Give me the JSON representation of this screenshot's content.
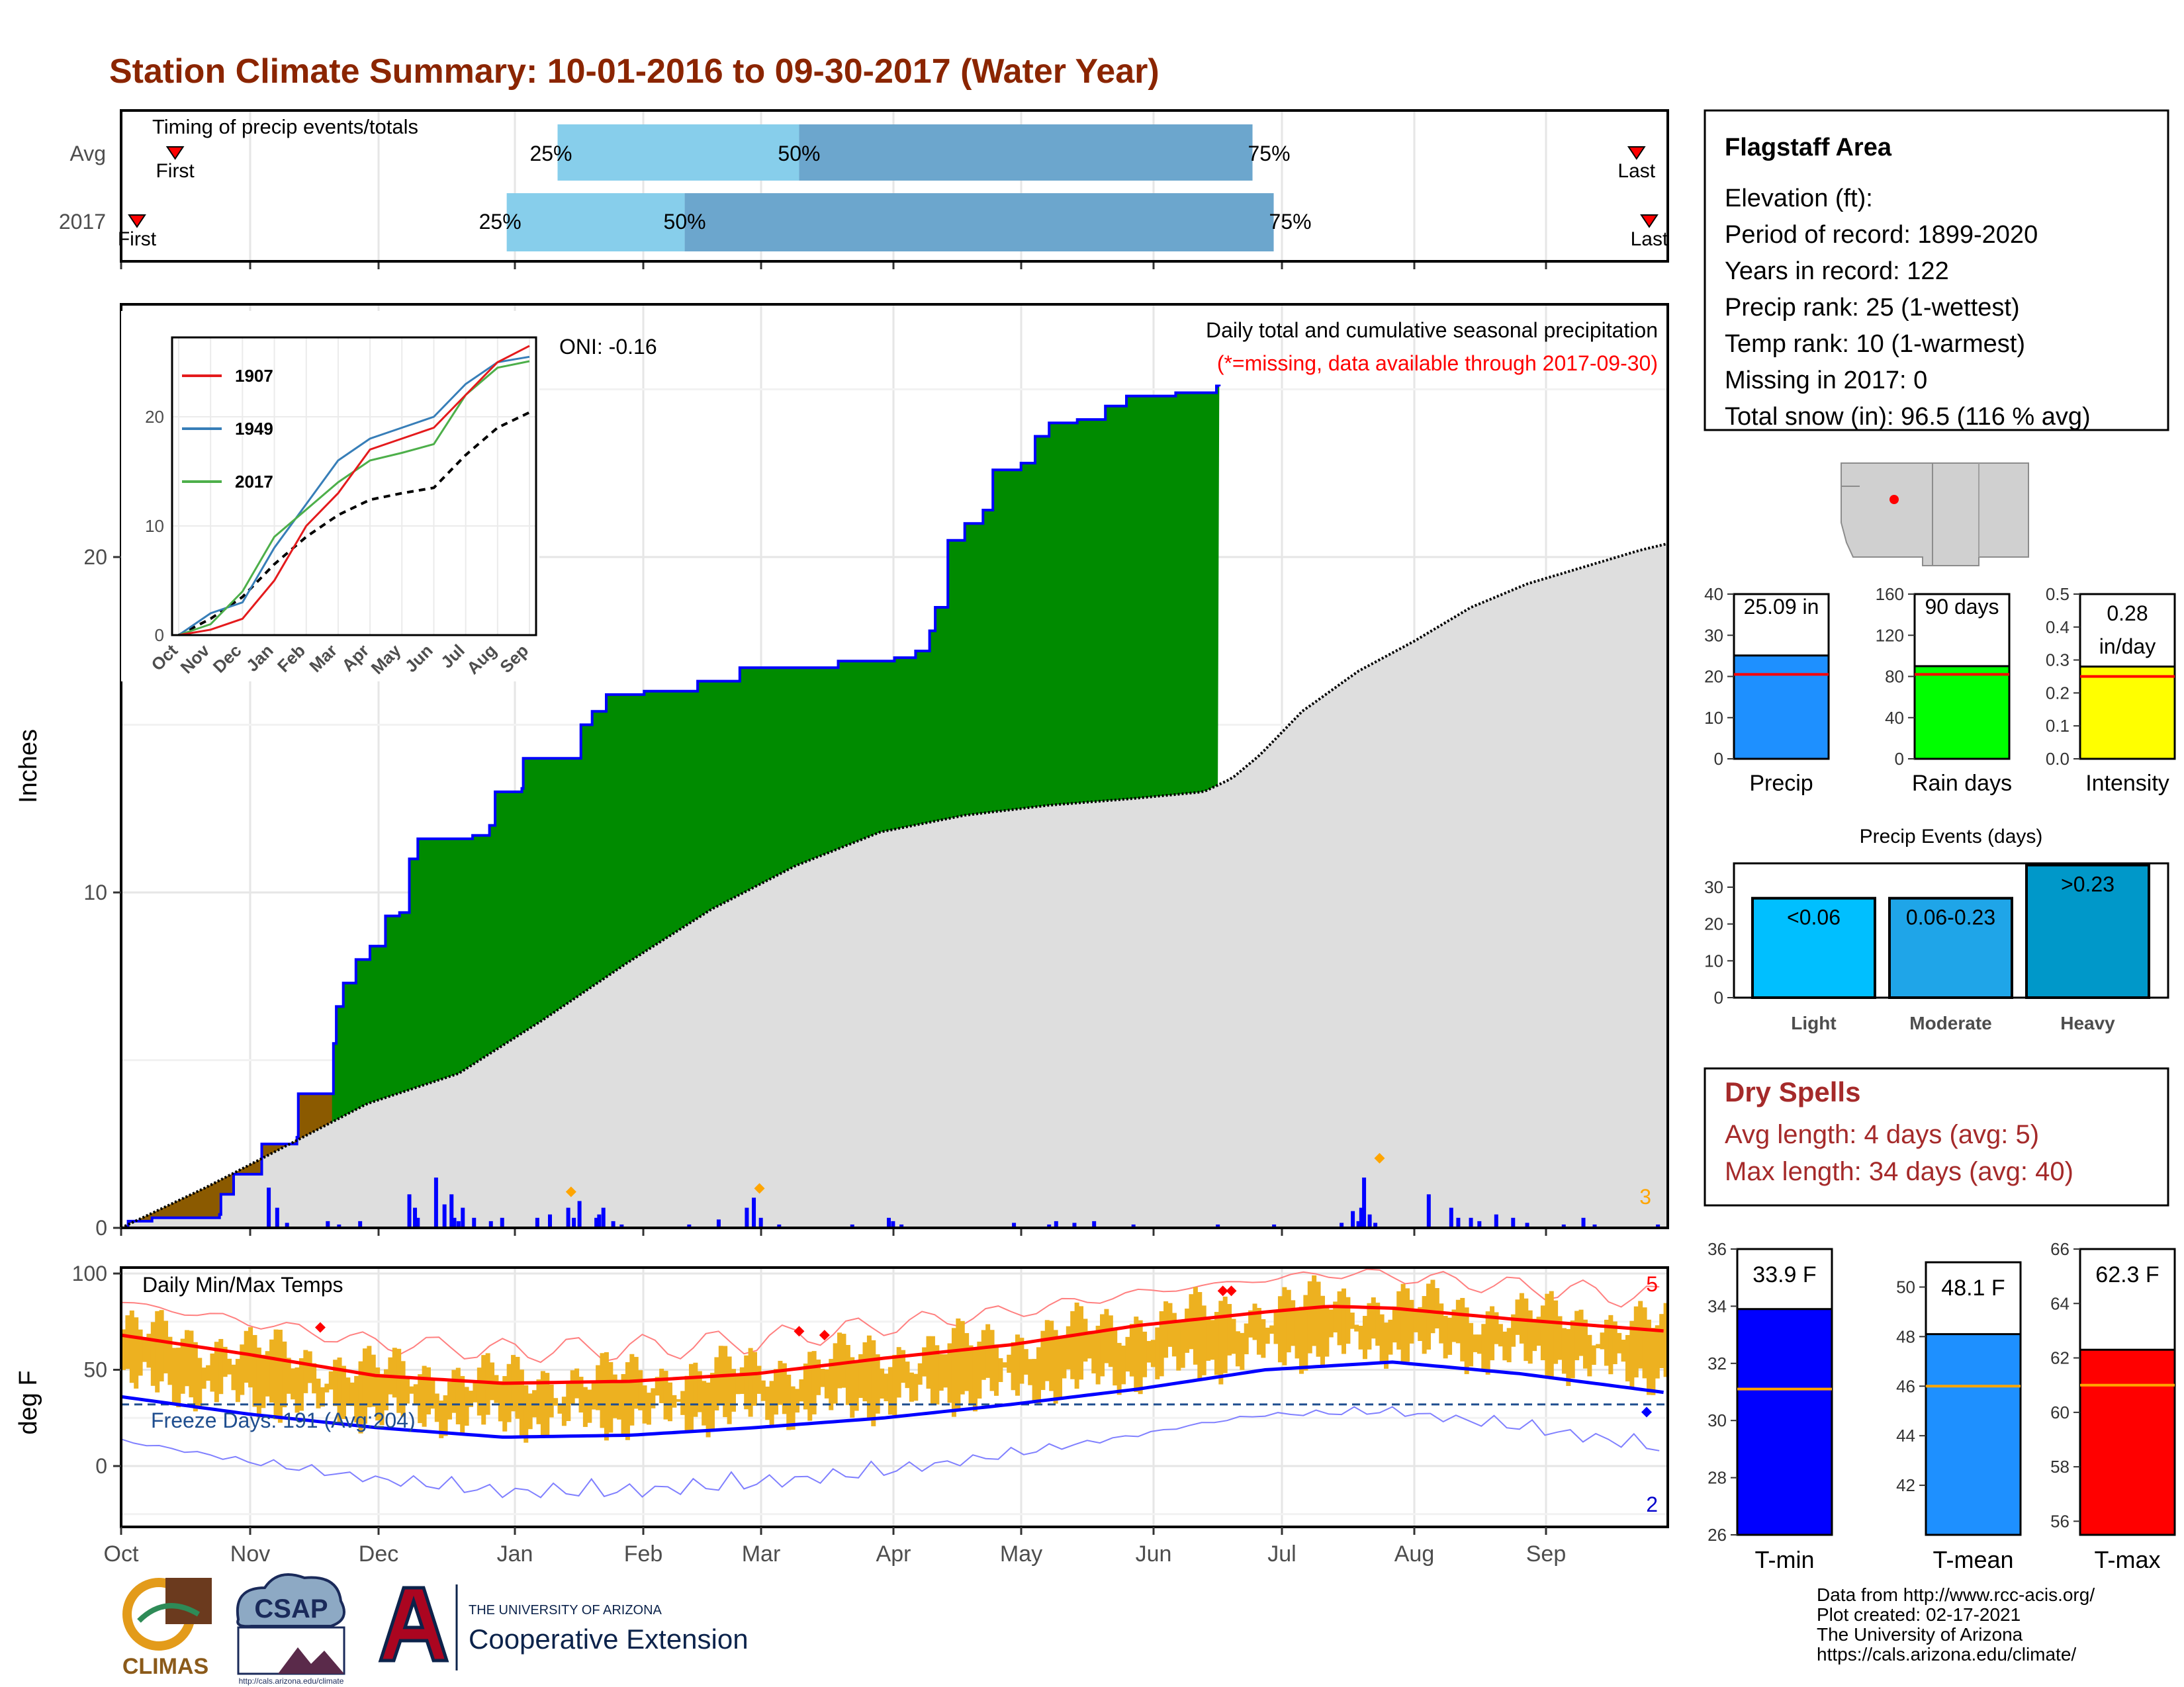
{
  "title": "Station Climate Summary: 10-01-2016 to 09-30-2017 (Water Year)",
  "timing": {
    "label": "Timing of precip events/totals",
    "rows": [
      {
        "name": "Avg",
        "first_label": "First",
        "last_label": "Last",
        "p25": "25%",
        "p50": "50%",
        "p75": "75%"
      },
      {
        "name": "2017",
        "first_label": "First",
        "last_label": "Last",
        "p25": "25%",
        "p50": "50%",
        "p75": "75%"
      }
    ],
    "avg_day": {
      "first": 9,
      "p25": 103,
      "p50": 160,
      "p75": 267,
      "last": 357
    },
    "y2017_day": {
      "first": 0,
      "p25": 91,
      "p50": 133,
      "p75": 272,
      "last": 360
    }
  },
  "precip": {
    "title": "Daily total and cumulative seasonal precipitation",
    "missing_note": "(*=missing, data available through 2017-09-30)",
    "ylabel": "Inches",
    "oni": "ONI: -0.16",
    "extreme_count": "3",
    "yticks": [
      "0",
      "10",
      "20"
    ],
    "months": [
      "Oct",
      "Nov",
      "Dec",
      "Jan",
      "Feb",
      "Mar",
      "Apr",
      "May",
      "Jun",
      "Jul",
      "Aug",
      "Sep"
    ],
    "cumulative_2017_key": [
      [
        0,
        0
      ],
      [
        5,
        0.2
      ],
      [
        22,
        0.3
      ],
      [
        70,
        0.4
      ],
      [
        71,
        1.0
      ],
      [
        80,
        1.6
      ],
      [
        100,
        2.5
      ],
      [
        125,
        2.7
      ],
      [
        126,
        4.0
      ],
      [
        150,
        4.0
      ],
      [
        151,
        5.5
      ],
      [
        153,
        6.6
      ],
      [
        158,
        7.3
      ],
      [
        167,
        8.0
      ],
      [
        177,
        8.4
      ],
      [
        188,
        9.3
      ],
      [
        198,
        9.4
      ],
      [
        205,
        11.0
      ],
      [
        211,
        11.6
      ],
      [
        250,
        11.7
      ],
      [
        262,
        12.0
      ],
      [
        266,
        13.0
      ],
      [
        285,
        13.1
      ],
      [
        286,
        14.0
      ],
      [
        325,
        14.0
      ],
      [
        327,
        15.0
      ],
      [
        335,
        15.4
      ],
      [
        345,
        15.9
      ],
      [
        372,
        16.0
      ],
      [
        400,
        16.0
      ],
      [
        410,
        16.3
      ],
      [
        440,
        16.7
      ],
      [
        490,
        16.7
      ],
      [
        510,
        16.9
      ],
      [
        550,
        17.0
      ],
      [
        565,
        17.2
      ],
      [
        575,
        17.8
      ],
      [
        579,
        18.5
      ],
      [
        588,
        20.5
      ],
      [
        600,
        21.0
      ],
      [
        613,
        21.4
      ],
      [
        620,
        22.6
      ],
      [
        640,
        22.8
      ],
      [
        650,
        23.6
      ],
      [
        660,
        24.0
      ],
      [
        680,
        24.1
      ],
      [
        700,
        24.5
      ],
      [
        715,
        24.8
      ],
      [
        735,
        24.8
      ],
      [
        750,
        24.9
      ],
      [
        779,
        25.1
      ],
      [
        781,
        25.09
      ]
    ],
    "normal_key": [
      [
        0,
        0
      ],
      [
        60,
        1.2
      ],
      [
        120,
        2.5
      ],
      [
        175,
        3.7
      ],
      [
        240,
        4.6
      ],
      [
        300,
        6.2
      ],
      [
        360,
        7.9
      ],
      [
        420,
        9.5
      ],
      [
        480,
        10.8
      ],
      [
        540,
        11.8
      ],
      [
        600,
        12.3
      ],
      [
        660,
        12.6
      ],
      [
        720,
        12.8
      ],
      [
        770,
        13.0
      ],
      [
        790,
        13.4
      ],
      [
        810,
        14.1
      ],
      [
        840,
        15.4
      ],
      [
        880,
        16.6
      ],
      [
        920,
        17.5
      ],
      [
        960,
        18.5
      ],
      [
        1000,
        19.2
      ],
      [
        1040,
        19.7
      ],
      [
        1080,
        20.2
      ],
      [
        1100,
        20.4
      ]
    ],
    "daily_bars": [
      [
        105,
        1.2
      ],
      [
        111,
        0.6
      ],
      [
        118,
        0.15
      ],
      [
        147,
        0.2
      ],
      [
        155,
        0.1
      ],
      [
        170,
        0.2
      ],
      [
        205,
        1.0
      ],
      [
        209,
        0.6
      ],
      [
        211,
        0.3
      ],
      [
        224,
        1.5
      ],
      [
        230,
        0.7
      ],
      [
        235,
        1.0
      ],
      [
        237,
        0.3
      ],
      [
        240,
        0.2
      ],
      [
        243,
        0.6
      ],
      [
        251,
        0.3
      ],
      [
        263,
        0.2
      ],
      [
        271,
        0.3
      ],
      [
        296,
        0.3
      ],
      [
        305,
        0.4
      ],
      [
        318,
        0.6
      ],
      [
        322,
        0.3
      ],
      [
        326,
        0.8
      ],
      [
        338,
        0.3
      ],
      [
        340,
        0.4
      ],
      [
        343,
        0.6
      ],
      [
        350,
        0.2
      ],
      [
        356,
        0.1
      ],
      [
        404,
        0.1
      ],
      [
        425,
        0.25
      ],
      [
        445,
        0.6
      ],
      [
        450,
        0.9
      ],
      [
        455,
        0.3
      ],
      [
        468,
        0.1
      ],
      [
        520,
        0.1
      ],
      [
        546,
        0.3
      ],
      [
        549,
        0.2
      ],
      [
        555,
        0.1
      ],
      [
        635,
        0.15
      ],
      [
        660,
        0.1
      ],
      [
        665,
        0.2
      ],
      [
        678,
        0.15
      ],
      [
        692,
        0.2
      ],
      [
        720,
        0.1
      ],
      [
        780,
        0.1
      ],
      [
        820,
        0.1
      ],
      [
        868,
        0.15
      ],
      [
        876,
        0.5
      ],
      [
        880,
        0.2
      ],
      [
        882,
        0.6
      ],
      [
        884,
        1.5
      ],
      [
        888,
        0.4
      ],
      [
        892,
        0.15
      ],
      [
        930,
        1.0
      ],
      [
        946,
        0.6
      ],
      [
        951,
        0.3
      ],
      [
        960,
        0.3
      ],
      [
        966,
        0.2
      ],
      [
        978,
        0.4
      ],
      [
        990,
        0.3
      ],
      [
        1000,
        0.15
      ],
      [
        1026,
        0.1
      ],
      [
        1040,
        0.3
      ],
      [
        1048,
        0.1
      ],
      [
        1093,
        0.1
      ]
    ],
    "extreme_markers": [
      [
        320,
        0.8
      ],
      [
        454,
        0.9
      ],
      [
        895,
        1.8
      ]
    ]
  },
  "inset": {
    "legend": [
      "1907",
      "1949",
      "2017"
    ],
    "yticks": [
      "0",
      "10",
      "20"
    ],
    "months": [
      "Oct",
      "Nov",
      "Dec",
      "Jan",
      "Feb",
      "Mar",
      "Apr",
      "May",
      "Jun",
      "Jul",
      "Aug",
      "Sep"
    ],
    "series_1907": [
      [
        0,
        0
      ],
      [
        1,
        0.5
      ],
      [
        2,
        1.5
      ],
      [
        3,
        5
      ],
      [
        4,
        10
      ],
      [
        5,
        13
      ],
      [
        6,
        17
      ],
      [
        7,
        18
      ],
      [
        8,
        19
      ],
      [
        9,
        22
      ],
      [
        10,
        25
      ],
      [
        11,
        26.5
      ]
    ],
    "series_1949": [
      [
        0,
        0
      ],
      [
        1,
        2
      ],
      [
        2,
        3
      ],
      [
        3,
        8
      ],
      [
        4,
        12
      ],
      [
        5,
        16
      ],
      [
        6,
        18
      ],
      [
        7,
        19
      ],
      [
        8,
        20
      ],
      [
        9,
        23
      ],
      [
        10,
        25
      ],
      [
        11,
        25.5
      ]
    ],
    "series_2017": [
      [
        0,
        0
      ],
      [
        1,
        1
      ],
      [
        2,
        4
      ],
      [
        3,
        9
      ],
      [
        4,
        11.5
      ],
      [
        5,
        14
      ],
      [
        6,
        16
      ],
      [
        7,
        16.7
      ],
      [
        8,
        17.5
      ],
      [
        9,
        22
      ],
      [
        10,
        24.5
      ],
      [
        11,
        25.09
      ]
    ],
    "series_normal": [
      [
        0,
        0
      ],
      [
        1,
        1.5
      ],
      [
        2,
        3.5
      ],
      [
        3,
        6.5
      ],
      [
        4,
        9
      ],
      [
        5,
        11
      ],
      [
        6,
        12.4
      ],
      [
        7,
        13
      ],
      [
        8,
        13.5
      ],
      [
        9,
        16.5
      ],
      [
        10,
        19
      ],
      [
        11,
        20.4
      ]
    ]
  },
  "temps": {
    "title": "Daily Min/Max Temps",
    "ylabel": "deg F",
    "freeze": "Freeze Days: 191 (Avg:204)",
    "yticks": [
      "0",
      "50",
      "100"
    ],
    "max_records": "5",
    "min_records": "2",
    "months": [
      "Oct",
      "Nov",
      "Dec",
      "Jan",
      "Feb",
      "Mar",
      "Apr",
      "May",
      "Jun",
      "Jul",
      "Aug",
      "Sep"
    ],
    "normal_max": [
      [
        0,
        68
      ],
      [
        30,
        58
      ],
      [
        60,
        47
      ],
      [
        90,
        43
      ],
      [
        120,
        44
      ],
      [
        150,
        48
      ],
      [
        180,
        56
      ],
      [
        210,
        63
      ],
      [
        240,
        73
      ],
      [
        270,
        80
      ],
      [
        285,
        83
      ],
      [
        300,
        82
      ],
      [
        330,
        76
      ],
      [
        365,
        70
      ]
    ],
    "normal_min": [
      [
        0,
        36
      ],
      [
        30,
        27
      ],
      [
        60,
        20
      ],
      [
        90,
        15
      ],
      [
        120,
        16
      ],
      [
        150,
        20
      ],
      [
        180,
        25
      ],
      [
        210,
        32
      ],
      [
        240,
        40
      ],
      [
        270,
        50
      ],
      [
        300,
        54
      ],
      [
        330,
        48
      ],
      [
        365,
        38
      ]
    ],
    "freeze_line": 32
  },
  "station": {
    "name": "Flagstaff Area",
    "lines": [
      "Elevation (ft):",
      "Period of record: 1899-2020",
      "Years in record: 122",
      "Precip rank: 25 (1-wettest)",
      "Temp rank: 10 (1-warmest)",
      "Missing in 2017: 0",
      "Total snow (in): 96.5 (116 % avg)"
    ]
  },
  "mini_bars": [
    {
      "label": "Precip",
      "value_text": "25.09 in",
      "value": 25.09,
      "avg": 20.5,
      "ymax": 40,
      "ticks": [
        "0",
        "10",
        "20",
        "30",
        "40"
      ],
      "color": "#1e90ff"
    },
    {
      "label": "Rain days",
      "value_text": "90 days",
      "value": 90,
      "avg": 82,
      "ymax": 160,
      "ticks": [
        "0",
        "40",
        "80",
        "120",
        "160"
      ],
      "color": "#00ff00"
    },
    {
      "label": "Intensity",
      "value_text": "0.28 in/day",
      "value": 0.28,
      "avg": 0.25,
      "ymax": 0.5,
      "ticks": [
        "0.0",
        "0.1",
        "0.2",
        "0.3",
        "0.4",
        "0.5"
      ],
      "color": "#ffff00"
    }
  ],
  "events": {
    "title": "Precip Events (days)",
    "categories": [
      "Light",
      "Moderate",
      "Heavy"
    ],
    "labels": [
      "<0.06",
      "0.06-0.23",
      ">0.23"
    ],
    "values": [
      27,
      27,
      36
    ],
    "yticks": [
      "0",
      "10",
      "20",
      "30"
    ],
    "colors": [
      "#00bfff",
      "#1fa5e8",
      "#0098c9"
    ]
  },
  "dry_spells": {
    "title": "Dry Spells",
    "avg": "Avg length: 4 days (avg: 5)",
    "max": "Max length: 34 days (avg: 40)"
  },
  "temp_bars": [
    {
      "label": "T-min",
      "value_text": "33.9 F",
      "value": 33.9,
      "avg": 31.1,
      "ymin": 26,
      "ymax": 36,
      "ticks": [
        "26",
        "28",
        "30",
        "32",
        "34",
        "36"
      ],
      "color": "#0000ff"
    },
    {
      "label": "T-mean",
      "value_text": "48.1 F",
      "value": 48.1,
      "avg": 46.0,
      "ymin": 40,
      "ymax": 51,
      "ticks": [
        "42",
        "44",
        "46",
        "48",
        "50"
      ],
      "color": "#1e90ff"
    },
    {
      "label": "T-max",
      "value_text": "62.3 F",
      "value": 62.3,
      "avg": 61.0,
      "ymin": 55.5,
      "ymax": 66,
      "ticks": [
        "56",
        "58",
        "60",
        "62",
        "64",
        "66"
      ],
      "color": "#ff0000"
    }
  ],
  "footer": {
    "lines": [
      "Data from http://www.rcc-acis.org/",
      "Plot created: 02-17-2021",
      "The University of Arizona",
      "https://cals.arizona.edu/climate/"
    ],
    "climas": "CLIMAS",
    "csap": "CSAP",
    "csap_url": "http://cals.arizona.edu/climate",
    "ua_small": "THE UNIVERSITY OF ARIZONA",
    "ua_big": "Cooperative Extension"
  }
}
